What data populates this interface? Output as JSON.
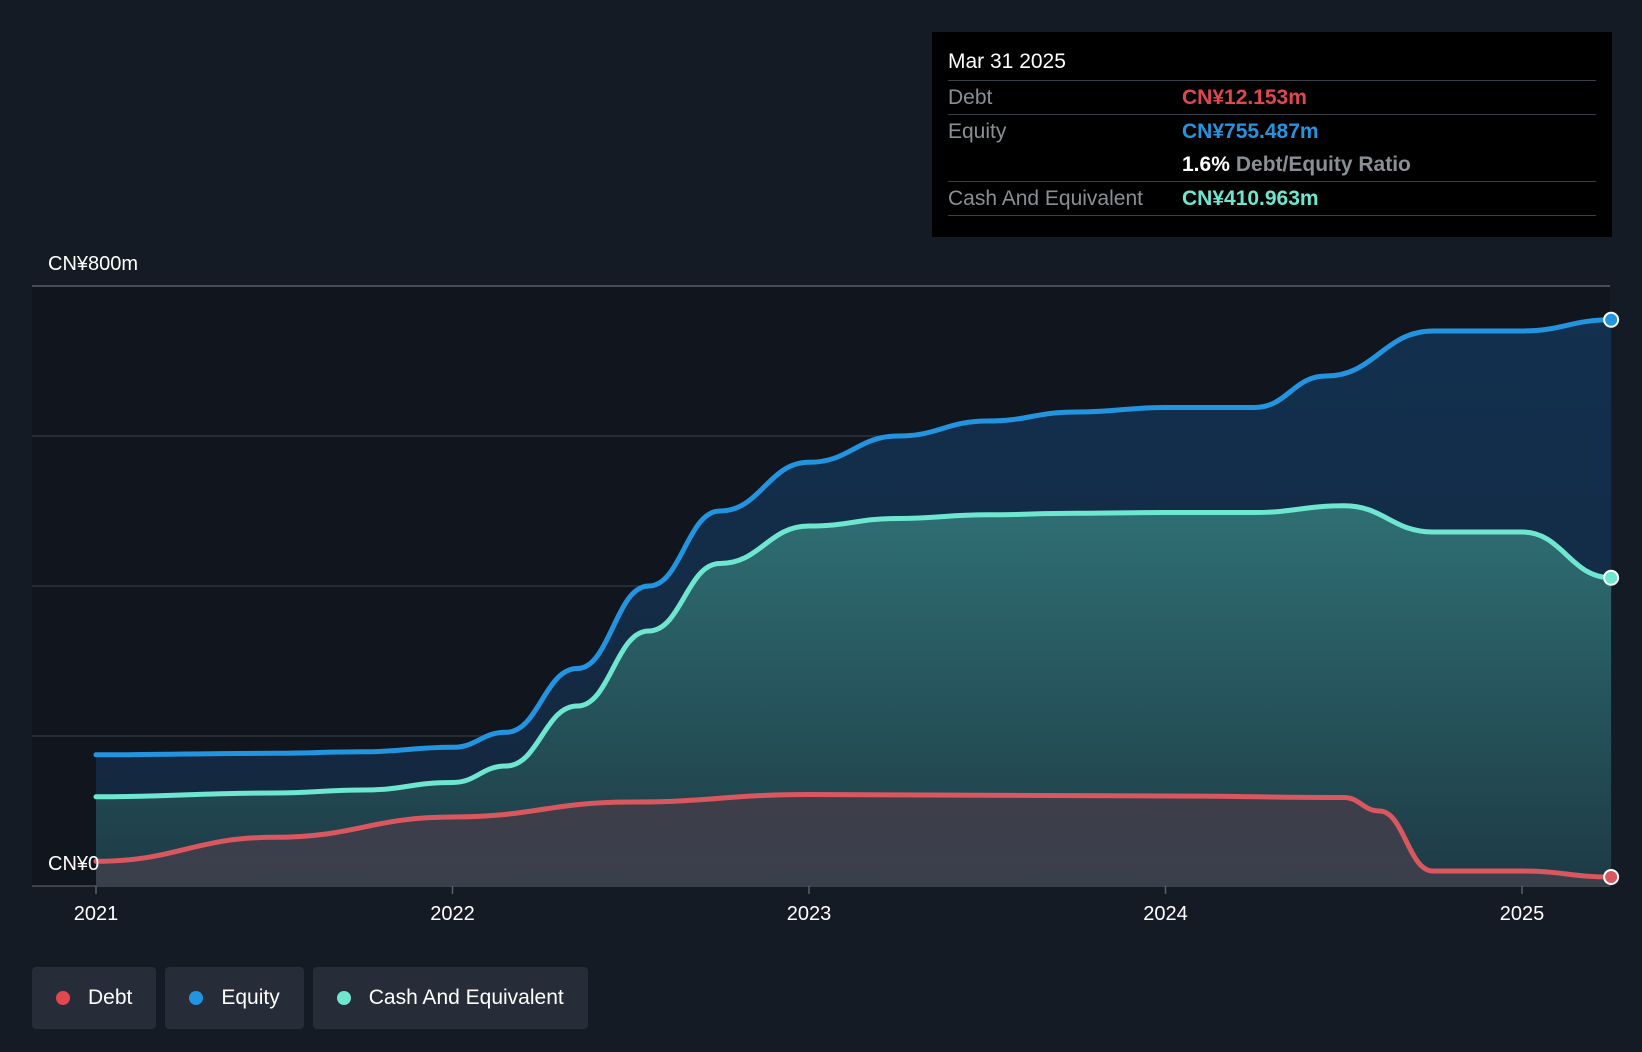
{
  "tooltip": {
    "date": "Mar 31 2025",
    "debt_label": "Debt",
    "debt_value": "CN¥12.153m",
    "equity_label": "Equity",
    "equity_value": "CN¥755.487m",
    "ratio_value": "1.6%",
    "ratio_label": "Debt/Equity Ratio",
    "cash_label": "Cash And Equivalent",
    "cash_value": "CN¥410.963m"
  },
  "colors": {
    "debt": "#e0474f",
    "equity": "#2394e0",
    "cash": "#6ee6d0",
    "debt_line": "#d9585f",
    "background": "#151b24"
  },
  "legend": [
    {
      "label": "Debt",
      "color": "#e0474f"
    },
    {
      "label": "Equity",
      "color": "#2394e0"
    },
    {
      "label": "Cash And Equivalent",
      "color": "#6ee6d0"
    }
  ],
  "chart_data": {
    "type": "area",
    "y_top_label": "CN¥800m",
    "y_bottom_label": "CN¥0",
    "ylim": [
      0,
      800
    ],
    "xlim": [
      2021.0,
      2025.25
    ],
    "x_ticks": [
      {
        "label": "2021",
        "x": 2021
      },
      {
        "label": "2022",
        "x": 2022
      },
      {
        "label": "2023",
        "x": 2023
      },
      {
        "label": "2024",
        "x": 2024
      },
      {
        "label": "2025",
        "x": 2025
      }
    ],
    "grid": true,
    "legend_position": "bottom-left",
    "series": [
      {
        "name": "Equity",
        "color": "#2394e0",
        "points": [
          [
            2021.0,
            175
          ],
          [
            2021.5,
            177
          ],
          [
            2021.75,
            179
          ],
          [
            2022.0,
            185
          ],
          [
            2022.15,
            205
          ],
          [
            2022.35,
            290
          ],
          [
            2022.55,
            400
          ],
          [
            2022.75,
            500
          ],
          [
            2023.0,
            565
          ],
          [
            2023.25,
            600
          ],
          [
            2023.5,
            620
          ],
          [
            2023.75,
            632
          ],
          [
            2024.0,
            638
          ],
          [
            2024.25,
            638
          ],
          [
            2024.45,
            680
          ],
          [
            2024.75,
            740
          ],
          [
            2025.0,
            740
          ],
          [
            2025.25,
            755
          ]
        ]
      },
      {
        "name": "Cash And Equivalent",
        "color": "#6ee6d0",
        "points": [
          [
            2021.0,
            119
          ],
          [
            2021.5,
            124
          ],
          [
            2021.75,
            128
          ],
          [
            2022.0,
            138
          ],
          [
            2022.15,
            160
          ],
          [
            2022.35,
            240
          ],
          [
            2022.55,
            340
          ],
          [
            2022.75,
            430
          ],
          [
            2023.0,
            480
          ],
          [
            2023.25,
            490
          ],
          [
            2023.5,
            495
          ],
          [
            2023.75,
            497
          ],
          [
            2024.0,
            498
          ],
          [
            2024.25,
            498
          ],
          [
            2024.5,
            507
          ],
          [
            2024.75,
            472
          ],
          [
            2025.0,
            472
          ],
          [
            2025.25,
            411
          ]
        ]
      },
      {
        "name": "Debt",
        "color": "#e0474f",
        "points": [
          [
            2021.0,
            33
          ],
          [
            2021.5,
            65
          ],
          [
            2022.0,
            92
          ],
          [
            2022.5,
            112
          ],
          [
            2023.0,
            122
          ],
          [
            2023.5,
            121
          ],
          [
            2024.0,
            120
          ],
          [
            2024.5,
            118
          ],
          [
            2024.6,
            100
          ],
          [
            2024.75,
            20
          ],
          [
            2025.0,
            20
          ],
          [
            2025.25,
            12
          ]
        ]
      }
    ]
  }
}
